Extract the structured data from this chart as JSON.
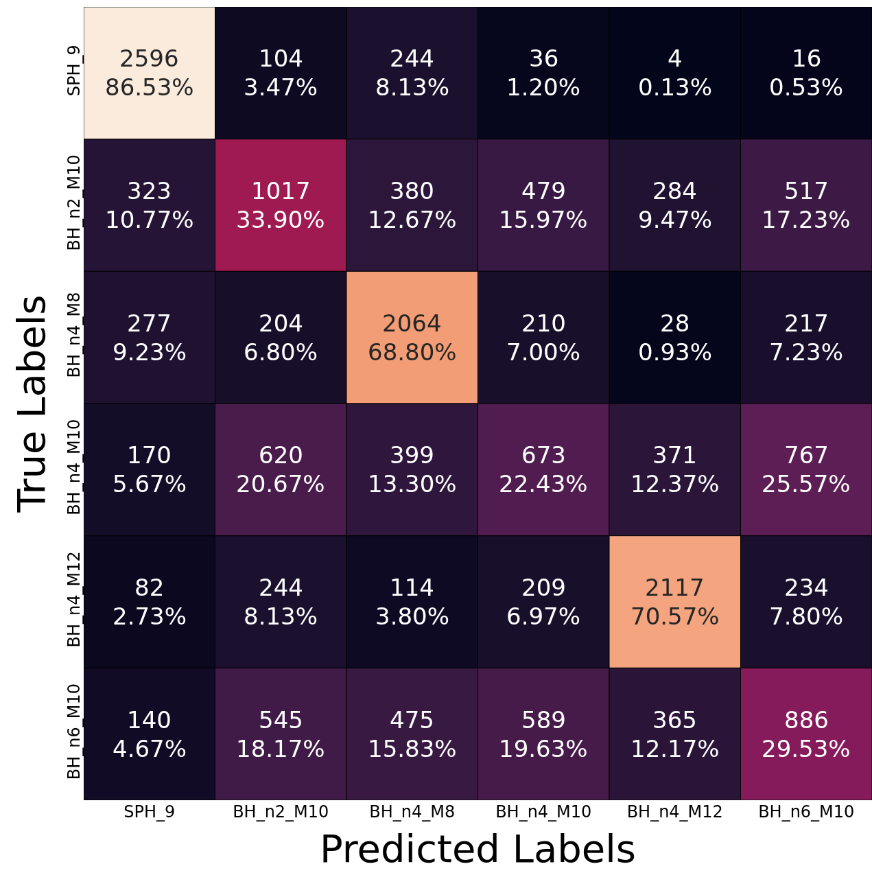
{
  "chart_data": {
    "type": "heatmap",
    "xlabel": "Predicted Labels",
    "ylabel": "True Labels",
    "data_labels": true,
    "categories": [
      "SPH_9",
      "BH_n2_M10",
      "BH_n4_M8",
      "BH_n4_M10",
      "BH_n4_M12",
      "BH_n6_M10"
    ],
    "y_categories": [
      "SPH_9",
      "BH_n2_M10",
      "BH_n4_M8",
      "BH_n4_M10",
      "BH_n4_M12",
      "BH_n6_M10"
    ],
    "cells": [
      [
        2596,
        104,
        244,
        36,
        4,
        16
      ],
      [
        323,
        1017,
        380,
        479,
        284,
        517
      ],
      [
        277,
        204,
        2064,
        210,
        28,
        217
      ],
      [
        170,
        620,
        399,
        673,
        371,
        767
      ],
      [
        82,
        244,
        114,
        209,
        2117,
        234
      ],
      [
        140,
        545,
        475,
        589,
        365,
        886
      ]
    ],
    "annotations": [
      "86.53%",
      "3.47%",
      "8.13%",
      "1.20%",
      "0.13%",
      "0.53%",
      "10.77%",
      "33.90%",
      "12.67%",
      "15.97%",
      "9.47%",
      "17.23%",
      "9.23%",
      "6.80%",
      "68.80%",
      "7.00%",
      "0.93%",
      "7.23%",
      "5.67%",
      "20.67%",
      "13.30%",
      "22.43%",
      "12.37%",
      "25.57%",
      "2.73%",
      "8.13%",
      "3.80%",
      "6.97%",
      "70.57%",
      "7.80%",
      "4.67%",
      "18.17%",
      "15.83%",
      "19.63%",
      "12.17%",
      "29.53%"
    ]
  }
}
